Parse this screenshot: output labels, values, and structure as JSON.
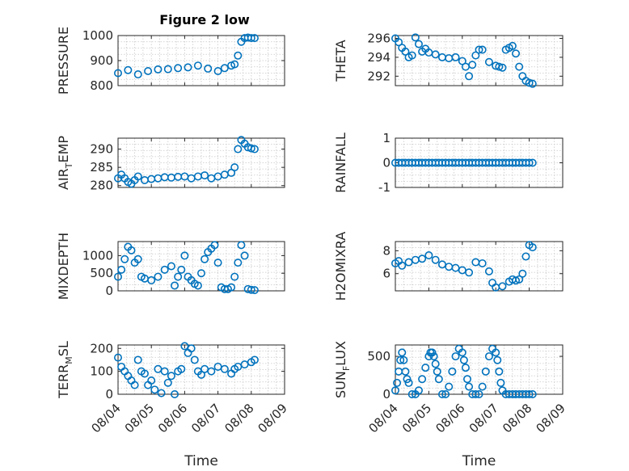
{
  "colors": {
    "marker": "#0072BD",
    "axis": "#262626",
    "grid": "#c8c8c8"
  },
  "title": "Figure 2 low",
  "chart_data": [
    {
      "type": "scatter",
      "title": "Figure 2 low",
      "ylabel": "PRESSURE",
      "ylim": [
        800,
        1000
      ],
      "yticks": [
        "800",
        "900",
        "1000"
      ],
      "xlim": [
        "08/04",
        "08/09"
      ],
      "grid": true,
      "x": [
        4.0,
        4.3,
        4.6,
        4.9,
        5.2,
        5.5,
        5.8,
        6.1,
        6.4,
        6.7,
        7.0,
        7.2,
        7.4,
        7.5,
        7.6,
        7.7,
        7.8,
        7.9,
        8.0,
        8.1
      ],
      "values": [
        850,
        862,
        845,
        858,
        865,
        866,
        870,
        873,
        880,
        868,
        858,
        870,
        880,
        885,
        920,
        975,
        990,
        992,
        990,
        990
      ]
    },
    {
      "type": "scatter",
      "ylabel": "THETA",
      "ylim": [
        291,
        296.3
      ],
      "yticks": [
        "292",
        "294",
        "296"
      ],
      "xlim": [
        "08/04",
        "08/09"
      ],
      "grid": true,
      "x": [
        4.0,
        4.1,
        4.2,
        4.3,
        4.4,
        4.5,
        4.6,
        4.7,
        4.8,
        4.9,
        5.0,
        5.2,
        5.4,
        5.6,
        5.8,
        6.0,
        6.1,
        6.2,
        6.3,
        6.4,
        6.5,
        6.6,
        6.8,
        7.0,
        7.1,
        7.2,
        7.3,
        7.4,
        7.5,
        7.6,
        7.7,
        7.8,
        7.9,
        8.0,
        8.1
      ],
      "values": [
        296.0,
        295.6,
        295.0,
        294.6,
        294.0,
        294.2,
        296.1,
        295.4,
        294.6,
        294.9,
        294.5,
        294.3,
        294.0,
        293.9,
        294.0,
        293.6,
        293.0,
        292.0,
        293.2,
        294.2,
        294.8,
        294.8,
        293.5,
        293.1,
        293.0,
        292.9,
        294.8,
        295.0,
        295.2,
        294.4,
        293.0,
        292.0,
        291.5,
        291.3,
        291.2
      ]
    },
    {
      "type": "scatter",
      "ylabel": "AIR_TEMP",
      "ylabel_main": "AIR",
      "ylabel_sub": "T",
      "ylabel_tail": "EMP",
      "ylim": [
        279.5,
        293
      ],
      "yticks": [
        "280",
        "285",
        "290"
      ],
      "xlim": [
        "08/04",
        "08/09"
      ],
      "grid": true,
      "x": [
        4.0,
        4.1,
        4.2,
        4.3,
        4.4,
        4.5,
        4.6,
        4.8,
        5.0,
        5.2,
        5.4,
        5.6,
        5.8,
        6.0,
        6.2,
        6.4,
        6.6,
        6.8,
        7.0,
        7.2,
        7.4,
        7.5,
        7.6,
        7.7,
        7.8,
        7.9,
        8.0,
        8.1
      ],
      "values": [
        282.0,
        283.0,
        282.0,
        281.0,
        280.5,
        281.5,
        282.5,
        281.5,
        281.8,
        282.0,
        282.3,
        282.2,
        282.4,
        282.5,
        282.0,
        282.5,
        282.8,
        282.0,
        282.5,
        283.0,
        283.5,
        285.0,
        290.0,
        292.5,
        291.5,
        290.5,
        290.2,
        290.0
      ]
    },
    {
      "type": "scatter",
      "ylabel": "RAINFALL",
      "ylim": [
        -1,
        1
      ],
      "yticks": [
        "-1",
        "0",
        "1"
      ],
      "xlim": [
        "08/04",
        "08/09"
      ],
      "grid": true,
      "x": [
        4.0,
        4.1,
        4.2,
        4.3,
        4.4,
        4.5,
        4.6,
        4.7,
        4.8,
        4.9,
        5.0,
        5.1,
        5.2,
        5.3,
        5.4,
        5.5,
        5.6,
        5.7,
        5.8,
        5.9,
        6.0,
        6.1,
        6.2,
        6.3,
        6.4,
        6.5,
        6.6,
        6.7,
        6.8,
        6.9,
        7.0,
        7.1,
        7.2,
        7.3,
        7.4,
        7.5,
        7.6,
        7.7,
        7.8,
        7.9,
        8.0,
        8.1
      ],
      "values": [
        0,
        0,
        0,
        0,
        0,
        0,
        0,
        0,
        0,
        0,
        0,
        0,
        0,
        0,
        0,
        0,
        0,
        0,
        0,
        0,
        0,
        0,
        0,
        0,
        0,
        0,
        0,
        0,
        0,
        0,
        0,
        0,
        0,
        0,
        0,
        0,
        0,
        0,
        0,
        0,
        0,
        0
      ]
    },
    {
      "type": "scatter",
      "ylabel": "MIXDEPTH",
      "ylim": [
        0,
        1400
      ],
      "yticks": [
        "0",
        "500",
        "1000"
      ],
      "xlim": [
        "08/04",
        "08/09"
      ],
      "grid": true,
      "x": [
        4.0,
        4.1,
        4.2,
        4.3,
        4.4,
        4.5,
        4.6,
        4.7,
        4.8,
        5.0,
        5.2,
        5.4,
        5.6,
        5.7,
        5.8,
        5.9,
        6.0,
        6.1,
        6.2,
        6.3,
        6.4,
        6.5,
        6.6,
        6.7,
        6.8,
        6.9,
        7.0,
        7.1,
        7.2,
        7.3,
        7.4,
        7.5,
        7.6,
        7.7,
        7.8,
        7.9,
        8.0,
        8.1
      ],
      "values": [
        400,
        600,
        900,
        1250,
        1150,
        800,
        900,
        400,
        350,
        300,
        400,
        600,
        700,
        150,
        400,
        600,
        1000,
        400,
        300,
        200,
        150,
        500,
        900,
        1100,
        1200,
        1300,
        800,
        100,
        50,
        50,
        100,
        400,
        800,
        1300,
        1000,
        50,
        30,
        20
      ]
    },
    {
      "type": "scatter",
      "ylabel": "H2OMIXRA",
      "ylim": [
        4.5,
        8.8
      ],
      "yticks": [
        "6",
        "8"
      ],
      "xlim": [
        "08/04",
        "08/09"
      ],
      "grid": true,
      "x": [
        4.0,
        4.1,
        4.2,
        4.4,
        4.6,
        4.8,
        5.0,
        5.2,
        5.4,
        5.6,
        5.8,
        6.0,
        6.2,
        6.4,
        6.6,
        6.8,
        6.9,
        7.0,
        7.2,
        7.4,
        7.5,
        7.6,
        7.7,
        7.8,
        7.9,
        8.0,
        8.1
      ],
      "values": [
        6.9,
        7.1,
        6.7,
        7.0,
        7.2,
        7.3,
        7.6,
        7.2,
        6.8,
        6.6,
        6.5,
        6.3,
        6.1,
        7.0,
        6.9,
        6.2,
        5.2,
        4.8,
        4.9,
        5.3,
        5.5,
        5.4,
        5.5,
        6.0,
        7.5,
        8.5,
        8.3
      ]
    },
    {
      "type": "scatter",
      "ylabel": "TERR_MSL",
      "ylabel_main": "TERR",
      "ylabel_sub": "M",
      "ylabel_tail": "SL",
      "ylim": [
        0,
        215
      ],
      "yticks": [
        "0",
        "100",
        "200"
      ],
      "xlim": [
        "08/04",
        "08/09"
      ],
      "grid": true,
      "x": [
        4.0,
        4.1,
        4.2,
        4.3,
        4.4,
        4.5,
        4.6,
        4.7,
        4.8,
        4.9,
        5.0,
        5.1,
        5.2,
        5.3,
        5.4,
        5.5,
        5.6,
        5.7,
        5.8,
        5.9,
        6.0,
        6.1,
        6.2,
        6.3,
        6.4,
        6.5,
        6.6,
        6.8,
        7.0,
        7.2,
        7.4,
        7.5,
        7.6,
        7.8,
        8.0,
        8.1
      ],
      "values": [
        160,
        120,
        100,
        80,
        60,
        40,
        150,
        100,
        90,
        40,
        60,
        20,
        110,
        5,
        100,
        50,
        80,
        0,
        100,
        110,
        210,
        180,
        200,
        150,
        100,
        85,
        110,
        100,
        120,
        110,
        90,
        110,
        120,
        130,
        140,
        150
      ]
    },
    {
      "type": "scatter",
      "ylabel": "SUN_FLUX",
      "ylabel_main": "SUN",
      "ylabel_sub": "F",
      "ylabel_tail": "LUX",
      "ylim": [
        0,
        650
      ],
      "yticks": [
        "0",
        "500"
      ],
      "xlim": [
        "08/04",
        "08/09"
      ],
      "grid": true,
      "x": [
        4.0,
        4.05,
        4.1,
        4.15,
        4.2,
        4.25,
        4.3,
        4.35,
        4.4,
        4.5,
        4.6,
        4.7,
        4.8,
        4.9,
        5.0,
        5.05,
        5.1,
        5.15,
        5.2,
        5.25,
        5.3,
        5.4,
        5.5,
        5.6,
        5.7,
        5.8,
        5.9,
        6.0,
        6.05,
        6.1,
        6.15,
        6.2,
        6.3,
        6.4,
        6.5,
        6.6,
        6.7,
        6.8,
        6.9,
        7.0,
        7.05,
        7.1,
        7.15,
        7.2,
        7.3,
        7.4,
        7.5,
        7.6,
        7.7,
        7.8,
        7.9,
        8.0,
        8.1
      ],
      "values": [
        50,
        150,
        300,
        450,
        550,
        450,
        300,
        200,
        150,
        0,
        0,
        50,
        200,
        350,
        500,
        550,
        550,
        500,
        400,
        300,
        200,
        0,
        0,
        100,
        300,
        500,
        600,
        550,
        450,
        350,
        200,
        100,
        0,
        0,
        0,
        100,
        300,
        500,
        600,
        550,
        450,
        300,
        150,
        50,
        0,
        0,
        0,
        0,
        0,
        0,
        0,
        0,
        0
      ]
    }
  ],
  "x_tick_labels": [
    "08/04",
    "08/05",
    "08/06",
    "08/07",
    "08/08",
    "08/09"
  ],
  "x_axis_label": "Time"
}
